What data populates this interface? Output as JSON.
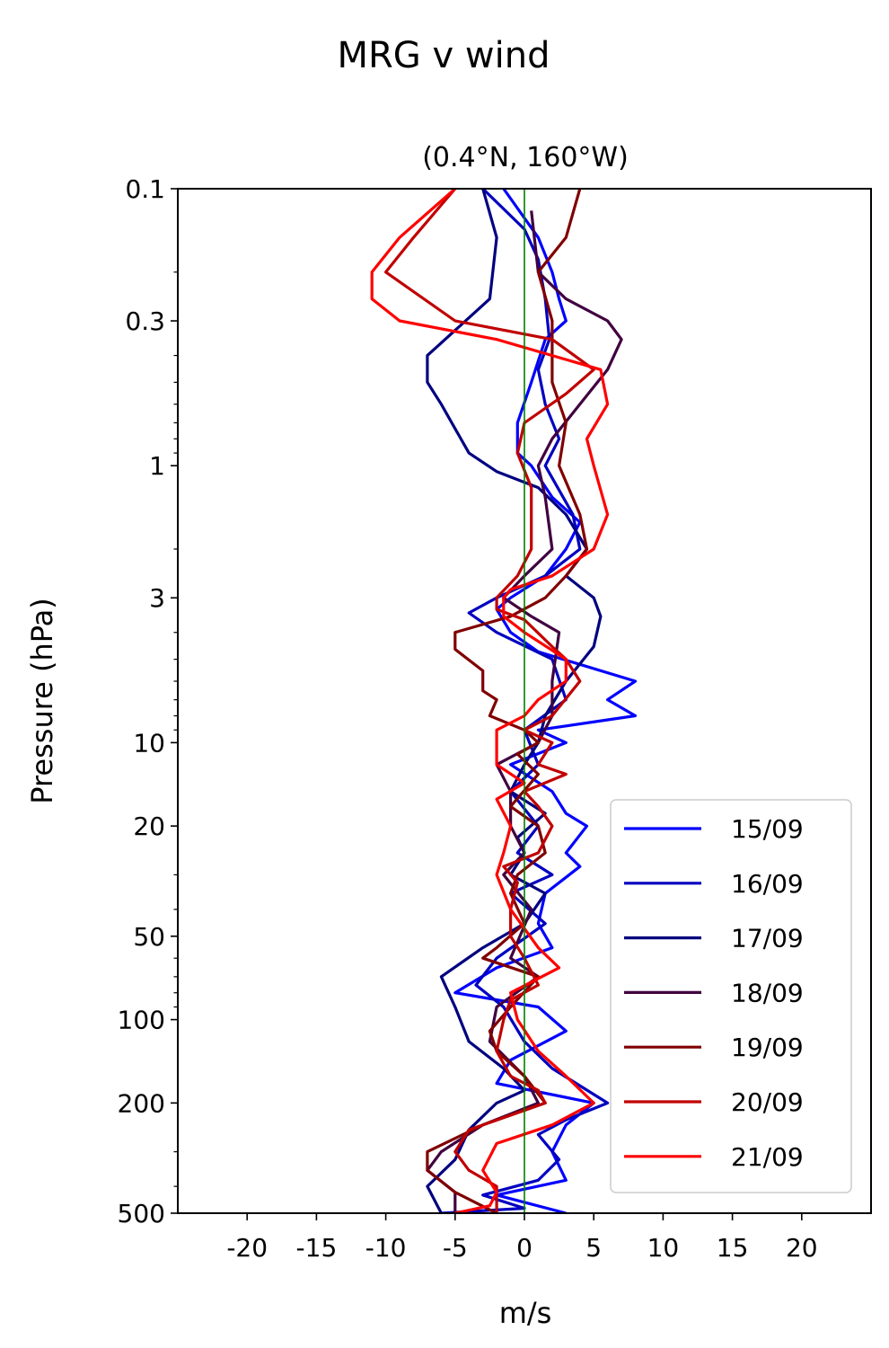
{
  "figure": {
    "suptitle": "MRG v wind"
  },
  "chart_data": {
    "type": "line",
    "title": "(0.4°N, 160°W)",
    "xlabel": "m/s",
    "ylabel": "Pressure (hPa)",
    "xlim": [
      -25,
      25
    ],
    "ylim": [
      500,
      0.1
    ],
    "yscale": "log",
    "xticks": [
      -20,
      -15,
      -10,
      -5,
      0,
      5,
      10,
      15,
      20
    ],
    "xtick_labels": [
      "-20",
      "-15",
      "-10",
      "-5",
      "0",
      "5",
      "10",
      "15",
      "20"
    ],
    "yticks": [
      0.1,
      0.3,
      1,
      3,
      10,
      20,
      50,
      100,
      200,
      500
    ],
    "ytick_labels": [
      "0.1",
      "0.3",
      "1",
      "3",
      "10",
      "20",
      "50",
      "100",
      "200",
      "500"
    ],
    "grid": false,
    "legend_position": "lower-right",
    "reference_line": {
      "x": 0,
      "color": "#008000"
    },
    "series": [
      {
        "name": "15/09",
        "color": "#0000ff",
        "points": [
          [
            -1.5,
            0.1
          ],
          [
            1,
            0.15
          ],
          [
            2,
            0.2
          ],
          [
            2.5,
            0.25
          ],
          [
            3,
            0.3
          ],
          [
            1.5,
            0.35
          ],
          [
            0.5,
            0.5
          ],
          [
            -0.5,
            0.7
          ],
          [
            -0.5,
            0.9
          ],
          [
            0.5,
            1
          ],
          [
            2,
            1.3
          ],
          [
            4,
            1.6
          ],
          [
            3,
            2
          ],
          [
            1.5,
            2.5
          ],
          [
            -1,
            3
          ],
          [
            -2,
            3.3
          ],
          [
            -1,
            4
          ],
          [
            1,
            4.7
          ],
          [
            8,
            6
          ],
          [
            6,
            7
          ],
          [
            8,
            8
          ],
          [
            1,
            9
          ],
          [
            3,
            10
          ],
          [
            -1,
            12
          ],
          [
            2,
            15
          ],
          [
            3,
            18
          ],
          [
            4.5,
            20
          ],
          [
            3,
            25
          ],
          [
            4,
            28
          ],
          [
            1.5,
            35
          ],
          [
            1,
            45
          ],
          [
            2,
            55
          ],
          [
            -2,
            65
          ],
          [
            -5,
            80
          ],
          [
            1,
            90
          ],
          [
            3,
            110
          ],
          [
            -1,
            140
          ],
          [
            -2,
            170
          ],
          [
            5,
            200
          ],
          [
            3,
            240
          ],
          [
            2,
            300
          ],
          [
            3,
            380
          ],
          [
            -2,
            430
          ],
          [
            3,
            500
          ]
        ]
      },
      {
        "name": "16/09",
        "color": "#0000c0",
        "points": [
          [
            -3,
            0.1
          ],
          [
            0,
            0.14
          ],
          [
            1,
            0.18
          ],
          [
            1.5,
            0.25
          ],
          [
            1.8,
            0.35
          ],
          [
            1,
            0.45
          ],
          [
            1.5,
            0.6
          ],
          [
            2.5,
            0.8
          ],
          [
            1.5,
            1
          ],
          [
            3.5,
            1.5
          ],
          [
            4,
            2
          ],
          [
            1.5,
            2.5
          ],
          [
            -2,
            3
          ],
          [
            -4,
            3.4
          ],
          [
            -2,
            4
          ],
          [
            2,
            5
          ],
          [
            3,
            7
          ],
          [
            0,
            9
          ],
          [
            1,
            12
          ],
          [
            -1,
            15
          ],
          [
            1,
            20
          ],
          [
            -0.5,
            25
          ],
          [
            2,
            30
          ],
          [
            -1,
            35
          ],
          [
            1.5,
            45
          ],
          [
            -2,
            60
          ],
          [
            -3.5,
            75
          ],
          [
            -1.5,
            90
          ],
          [
            0,
            120
          ],
          [
            2,
            150
          ],
          [
            6,
            200
          ],
          [
            3,
            230
          ],
          [
            1,
            260
          ],
          [
            2.5,
            320
          ],
          [
            1,
            380
          ],
          [
            -3,
            430
          ],
          [
            0,
            480
          ],
          [
            -6,
            500
          ]
        ]
      },
      {
        "name": "17/09",
        "color": "#000080",
        "points": [
          [
            -3,
            0.1
          ],
          [
            -2,
            0.15
          ],
          [
            -2.5,
            0.25
          ],
          [
            -7,
            0.4
          ],
          [
            -7,
            0.5
          ],
          [
            -6,
            0.6
          ],
          [
            -4,
            0.9
          ],
          [
            -2,
            1.05
          ],
          [
            1,
            1.2
          ],
          [
            3,
            1.5
          ],
          [
            4.5,
            2
          ],
          [
            3,
            2.5
          ],
          [
            5,
            3
          ],
          [
            5.5,
            3.5
          ],
          [
            5,
            4.5
          ],
          [
            3,
            6
          ],
          [
            1.5,
            8
          ],
          [
            1,
            10
          ],
          [
            0,
            12
          ],
          [
            -1,
            15
          ],
          [
            1.5,
            18
          ],
          [
            -0.5,
            22
          ],
          [
            0,
            25
          ],
          [
            -1,
            30
          ],
          [
            1.5,
            35
          ],
          [
            0,
            45
          ],
          [
            -3,
            55
          ],
          [
            -6,
            70
          ],
          [
            -5,
            90
          ],
          [
            -4,
            120
          ],
          [
            -1.5,
            150
          ],
          [
            0,
            180
          ],
          [
            -2,
            200
          ],
          [
            -4,
            250
          ],
          [
            -5,
            320
          ],
          [
            -7,
            400
          ],
          [
            -6,
            500
          ]
        ]
      },
      {
        "name": "18/09",
        "color": "#400040",
        "points": [
          [
            0.5,
            0.12
          ],
          [
            1,
            0.2
          ],
          [
            3,
            0.25
          ],
          [
            6,
            0.3
          ],
          [
            7,
            0.35
          ],
          [
            6,
            0.45
          ],
          [
            4,
            0.6
          ],
          [
            2,
            0.8
          ],
          [
            1,
            1
          ],
          [
            1.5,
            1.3
          ],
          [
            2,
            2
          ],
          [
            0,
            2.5
          ],
          [
            -1.5,
            3
          ],
          [
            0.5,
            3.5
          ],
          [
            2.5,
            4
          ],
          [
            2,
            6
          ],
          [
            2,
            8
          ],
          [
            1,
            10
          ],
          [
            -2,
            12
          ],
          [
            -1,
            15
          ],
          [
            -1,
            20
          ],
          [
            0,
            25
          ],
          [
            -1.5,
            30
          ],
          [
            0.5,
            40
          ],
          [
            -1,
            60
          ],
          [
            1,
            70
          ],
          [
            -2,
            90
          ],
          [
            -2.5,
            120
          ],
          [
            0,
            160
          ],
          [
            1,
            200
          ],
          [
            -3,
            240
          ],
          [
            -6,
            300
          ],
          [
            -7,
            350
          ],
          [
            -5,
            420
          ],
          [
            -5,
            500
          ]
        ]
      },
      {
        "name": "19/09",
        "color": "#800000",
        "points": [
          [
            4,
            0.1
          ],
          [
            3,
            0.15
          ],
          [
            1,
            0.2
          ],
          [
            2,
            0.3
          ],
          [
            2,
            0.5
          ],
          [
            3,
            0.7
          ],
          [
            2.5,
            1
          ],
          [
            4,
            1.5
          ],
          [
            4.5,
            2
          ],
          [
            3,
            2.5
          ],
          [
            1.5,
            3
          ],
          [
            -1,
            3.5
          ],
          [
            -5,
            4
          ],
          [
            -5,
            4.6
          ],
          [
            -3,
            5.5
          ],
          [
            -3,
            6.5
          ],
          [
            -2,
            7
          ],
          [
            -2.5,
            8
          ],
          [
            0,
            9
          ],
          [
            1,
            10
          ],
          [
            -0.5,
            11
          ],
          [
            1,
            13
          ],
          [
            -1,
            17
          ],
          [
            1,
            20
          ],
          [
            1.5,
            25
          ],
          [
            -0.5,
            30
          ],
          [
            -1,
            35
          ],
          [
            0,
            45
          ],
          [
            -2,
            55
          ],
          [
            -3,
            60
          ],
          [
            1,
            70
          ],
          [
            -1,
            90
          ],
          [
            -2.5,
            110
          ],
          [
            -2,
            130
          ],
          [
            0,
            160
          ],
          [
            1.5,
            200
          ],
          [
            -3,
            240
          ],
          [
            -7,
            300
          ],
          [
            -7,
            350
          ],
          [
            -5,
            420
          ],
          [
            -2,
            500
          ]
        ]
      },
      {
        "name": "20/09",
        "color": "#c00000",
        "points": [
          [
            -5,
            0.1
          ],
          [
            -8,
            0.15
          ],
          [
            -10,
            0.2
          ],
          [
            -5,
            0.3
          ],
          [
            2,
            0.35
          ],
          [
            5,
            0.45
          ],
          [
            3,
            0.55
          ],
          [
            0,
            0.7
          ],
          [
            -0.5,
            0.9
          ],
          [
            0.5,
            1.2
          ],
          [
            0.5,
            2
          ],
          [
            -0.5,
            2.5
          ],
          [
            -2,
            3
          ],
          [
            -2,
            3.3
          ],
          [
            0,
            3.6
          ],
          [
            2,
            4.5
          ],
          [
            3,
            5
          ],
          [
            4,
            6
          ],
          [
            2,
            8
          ],
          [
            0,
            9
          ],
          [
            2,
            10
          ],
          [
            1,
            12
          ],
          [
            3,
            13
          ],
          [
            0,
            15
          ],
          [
            1,
            17
          ],
          [
            2,
            20
          ],
          [
            1,
            25
          ],
          [
            -1.5,
            28
          ],
          [
            -0.5,
            32
          ],
          [
            -1,
            40
          ],
          [
            -1,
            50
          ],
          [
            0,
            60
          ],
          [
            1,
            75
          ],
          [
            -1,
            85
          ],
          [
            -1.5,
            100
          ],
          [
            -2,
            130
          ],
          [
            -1,
            160
          ],
          [
            1,
            180
          ],
          [
            1.5,
            200
          ],
          [
            -4,
            250
          ],
          [
            -5,
            300
          ],
          [
            -4,
            350
          ],
          [
            -2,
            400
          ],
          [
            -2,
            500
          ]
        ]
      },
      {
        "name": "21/09",
        "color": "#ff0000",
        "points": [
          [
            -5,
            0.1
          ],
          [
            -9,
            0.15
          ],
          [
            -11,
            0.2
          ],
          [
            -11,
            0.25
          ],
          [
            -9,
            0.3
          ],
          [
            -2,
            0.35
          ],
          [
            5.5,
            0.45
          ],
          [
            6,
            0.6
          ],
          [
            4.5,
            0.8
          ],
          [
            5,
            1
          ],
          [
            6,
            1.5
          ],
          [
            5,
            2
          ],
          [
            2,
            2.5
          ],
          [
            -1,
            2.8
          ],
          [
            -1.5,
            3
          ],
          [
            -1.5,
            3.5
          ],
          [
            0,
            4
          ],
          [
            3,
            5
          ],
          [
            3,
            6
          ],
          [
            1,
            7
          ],
          [
            0,
            8
          ],
          [
            -2,
            9
          ],
          [
            -2,
            12
          ],
          [
            0,
            14
          ],
          [
            -2,
            16
          ],
          [
            -1,
            20
          ],
          [
            -1.5,
            25
          ],
          [
            -2,
            30
          ],
          [
            -1,
            40
          ],
          [
            1,
            55
          ],
          [
            2.5,
            65
          ],
          [
            -1,
            80
          ],
          [
            -0.5,
            100
          ],
          [
            1,
            130
          ],
          [
            3,
            160
          ],
          [
            5,
            200
          ],
          [
            2,
            240
          ],
          [
            -2,
            280
          ],
          [
            -3,
            350
          ],
          [
            -2,
            420
          ],
          [
            -2.5,
            470
          ],
          [
            -5,
            500
          ]
        ]
      }
    ]
  }
}
